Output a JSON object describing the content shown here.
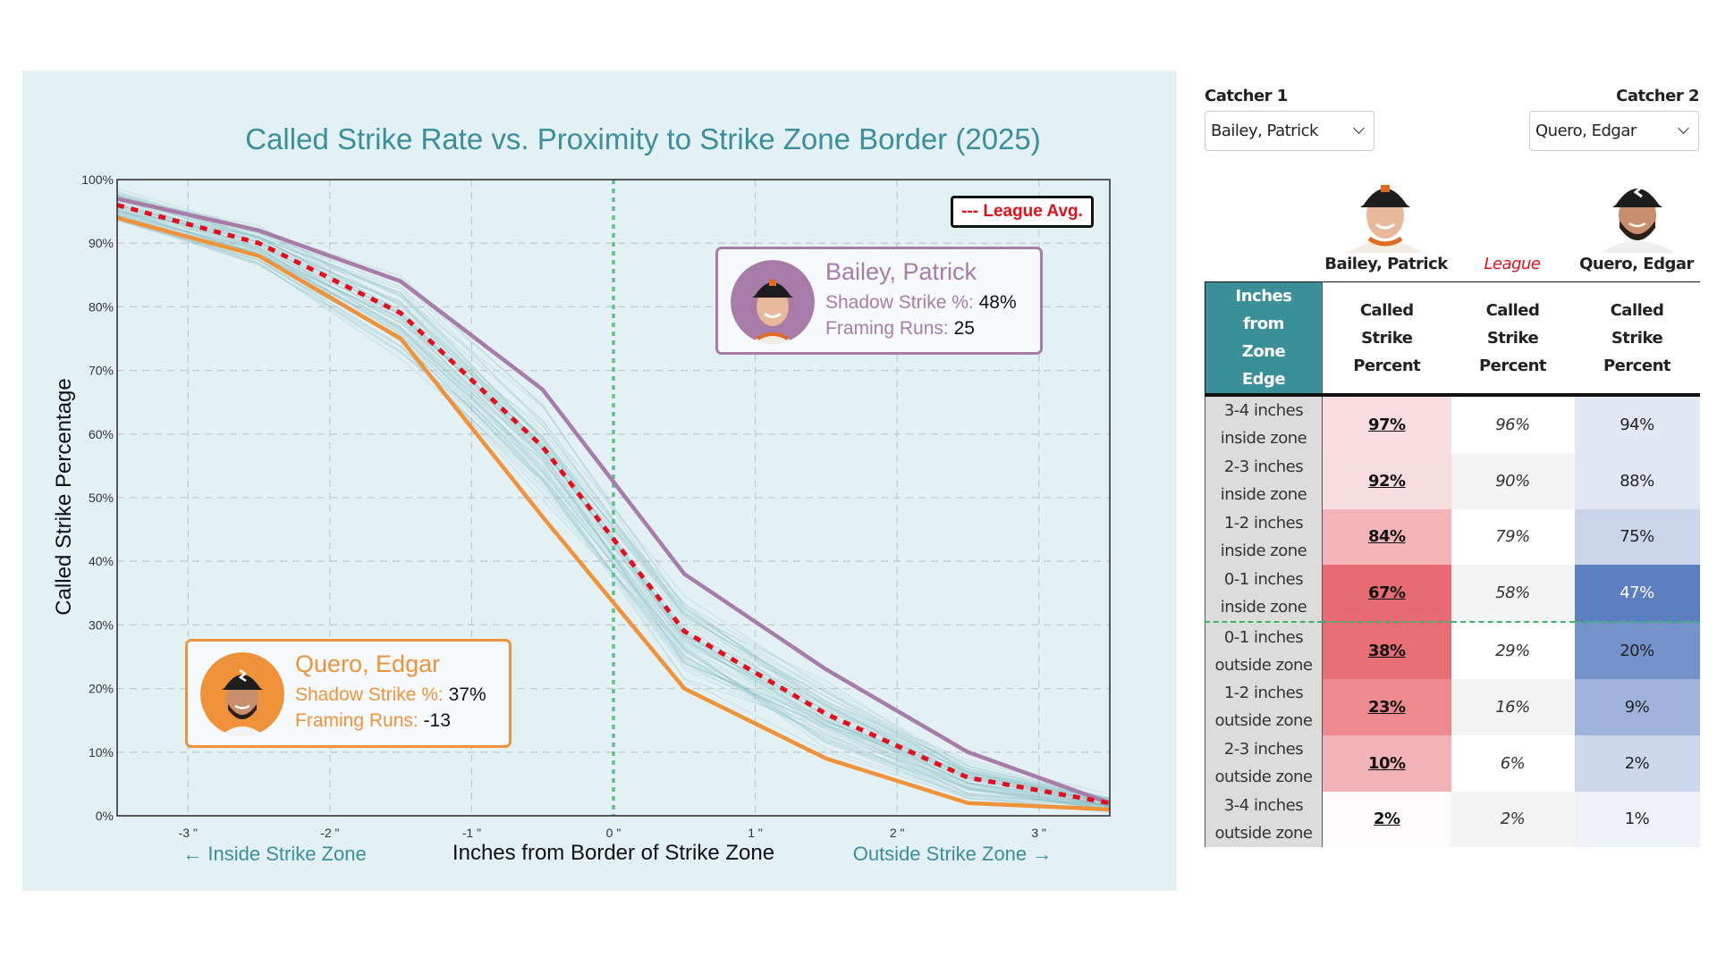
{
  "chart_data": {
    "type": "line",
    "title": "Called Strike Rate vs. Proximity to Strike Zone Border (2025)",
    "xlabel": "Inches from Border of Strike Zone",
    "ylabel": "Called Strike Percentage",
    "x_direction_labels": {
      "left": "← Inside Strike Zone",
      "right": "Outside Strike Zone →"
    },
    "xlim": [
      -3.5,
      3.5
    ],
    "ylim": [
      0,
      100
    ],
    "x_ticks": [
      -3,
      -2,
      -1,
      0,
      1,
      2,
      3
    ],
    "x_tick_labels": [
      "-3 \"",
      "-2 \"",
      "-1 \"",
      "0 \"",
      "1 \"",
      "2 \"",
      "3 \""
    ],
    "y_ticks": [
      0,
      10,
      20,
      30,
      40,
      50,
      60,
      70,
      80,
      90,
      100
    ],
    "y_tick_labels": [
      "0%",
      "10%",
      "20%",
      "30%",
      "40%",
      "50%",
      "60%",
      "70%",
      "80%",
      "90%",
      "100%"
    ],
    "grid": true,
    "zone_border_x": 0,
    "legend": {
      "label": "--- League Avg.",
      "position": "top-right"
    },
    "x": [
      -3.5,
      -2.5,
      -1.5,
      -0.5,
      0.5,
      1.5,
      2.5,
      3.5
    ],
    "series": [
      {
        "name": "Bailey, Patrick",
        "color": "#a87ca8",
        "values": [
          97,
          92,
          84,
          67,
          38,
          23,
          10,
          2
        ]
      },
      {
        "name": "League Avg.",
        "color": "#e3101b",
        "style": "dashed",
        "values": [
          96,
          90,
          79,
          58,
          29,
          16,
          6,
          2
        ]
      },
      {
        "name": "Quero, Edgar",
        "color": "#f0923a",
        "values": [
          94,
          88,
          75,
          47,
          20,
          9,
          2,
          1
        ]
      }
    ],
    "annotations": [
      {
        "name": "Bailey, Patrick",
        "shadow_label": "Shadow Strike %:",
        "shadow_value": "48%",
        "framing_label": "Framing Runs:",
        "framing_value": "25",
        "color": "#a87ca8"
      },
      {
        "name": "Quero, Edgar",
        "shadow_label": "Shadow Strike %:",
        "shadow_value": "37%",
        "framing_label": "Framing Runs:",
        "framing_value": "-13",
        "color": "#f0923a"
      }
    ]
  },
  "controls": {
    "catcher1_label": "Catcher 1",
    "catcher1_value": "Bailey, Patrick",
    "catcher2_label": "Catcher 2",
    "catcher2_value": "Quero, Edgar"
  },
  "table": {
    "column_names": [
      "Bailey, Patrick",
      "League",
      "Quero, Edgar"
    ],
    "headers": [
      "Inches from Zone Edge",
      "Called Strike Percent",
      "Called Strike Percent",
      "Called Strike Percent"
    ],
    "rows": [
      {
        "label_1": "3-4 inches",
        "label_2": "inside zone",
        "bailey": "97%",
        "league": "96%",
        "quero": "94%"
      },
      {
        "label_1": "2-3 inches",
        "label_2": "inside zone",
        "bailey": "92%",
        "league": "90%",
        "quero": "88%"
      },
      {
        "label_1": "1-2 inches",
        "label_2": "inside zone",
        "bailey": "84%",
        "league": "79%",
        "quero": "75%"
      },
      {
        "label_1": "0-1 inches",
        "label_2": "inside zone",
        "bailey": "67%",
        "league": "58%",
        "quero": "47%"
      },
      {
        "label_1": "0-1 inches",
        "label_2": "outside zone",
        "bailey": "38%",
        "league": "29%",
        "quero": "20%"
      },
      {
        "label_1": "1-2 inches",
        "label_2": "outside zone",
        "bailey": "23%",
        "league": "16%",
        "quero": "9%"
      },
      {
        "label_1": "2-3 inches",
        "label_2": "outside zone",
        "bailey": "10%",
        "league": "6%",
        "quero": "2%"
      },
      {
        "label_1": "3-4 inches",
        "label_2": "outside zone",
        "bailey": "2%",
        "league": "2%",
        "quero": "1%"
      }
    ],
    "colors": {
      "header_bg": "#3a8f98",
      "label_bg": "#dcdcdc",
      "bailey_bg": [
        "#f9dde1",
        "#f8dde0",
        "#f2b3b9",
        "#e86a73",
        "#e86e76",
        "#ec8a90",
        "#f2b3b8",
        "#fcfafa"
      ],
      "league_bg": [
        "#ffffff",
        "#f4f4f5",
        "#ffffff",
        "#f4f4f5",
        "#ffffff",
        "#f4f4f5",
        "#ffffff",
        "#f4f4f5"
      ],
      "quero_bg": [
        "#e1e7f3",
        "#e0e6f2",
        "#cbd5ea",
        "#5b7fc0",
        "#7593cb",
        "#9fb3dc",
        "#cdd7eb",
        "#eef1f8"
      ],
      "quero_fg": [
        "#222222",
        "#222222",
        "#222222",
        "#ffffff",
        "#222222",
        "#222222",
        "#222222",
        "#222222"
      ]
    }
  }
}
